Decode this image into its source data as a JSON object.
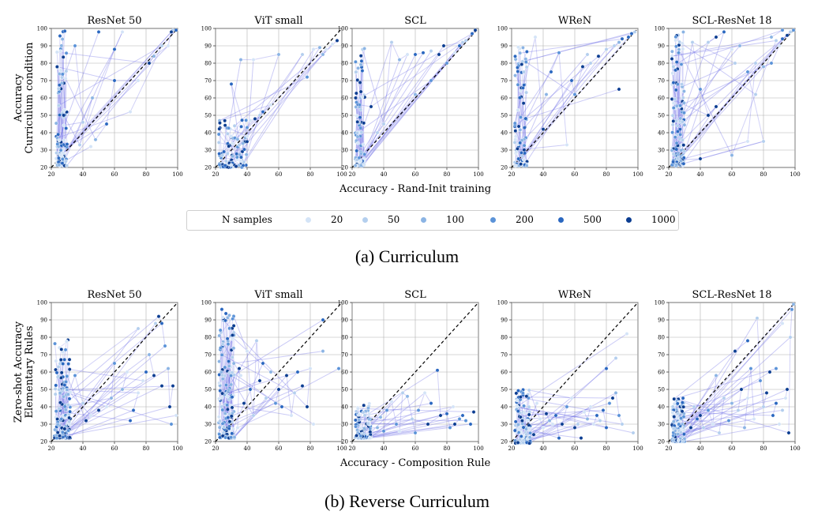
{
  "figure": {
    "caption_a": "(a) Curriculum",
    "caption_b": "(b) Reverse Curriculum",
    "legend": {
      "title": "N samples",
      "entries": [
        {
          "label": "20",
          "color": "#d4e4f7"
        },
        {
          "label": "50",
          "color": "#b4cfee"
        },
        {
          "label": "100",
          "color": "#8bb4e4"
        },
        {
          "label": "200",
          "color": "#5b93d8"
        },
        {
          "label": "500",
          "color": "#2a67c0"
        },
        {
          "label": "1000",
          "color": "#0b3d91"
        }
      ]
    },
    "line_color": "#6a6ae6",
    "diagonal_color": "#000000"
  },
  "chart_data": [
    {
      "type": "scatter",
      "panel": "a1",
      "row": "a",
      "title": "ResNet 50",
      "ylabel": "Accuracy\nCurriculum condition",
      "xlabel": "",
      "xlim": [
        20,
        100
      ],
      "ylim": [
        20,
        100
      ],
      "grid": true,
      "xticks": [
        20,
        40,
        60,
        80,
        100
      ],
      "yticks": [
        20,
        30,
        40,
        50,
        60,
        70,
        80,
        90,
        100
      ],
      "cluster": {
        "x": [
          23,
          30
        ],
        "y": [
          21,
          99
        ],
        "count": 110
      },
      "series_points": [
        [
          97,
          99
        ],
        [
          96,
          98
        ],
        [
          94,
          90
        ],
        [
          85,
          84
        ],
        [
          82,
          80
        ],
        [
          75,
          70
        ],
        [
          60,
          70
        ],
        [
          55,
          45
        ],
        [
          48,
          36
        ],
        [
          45,
          32
        ],
        [
          70,
          52
        ],
        [
          90,
          90
        ],
        [
          99,
          99
        ],
        [
          50,
          98
        ],
        [
          35,
          90
        ],
        [
          40,
          46
        ],
        [
          46,
          60
        ],
        [
          38,
          33
        ],
        [
          60,
          88
        ],
        [
          65,
          98
        ]
      ]
    },
    {
      "type": "scatter",
      "panel": "a2",
      "row": "a",
      "title": "ViT small",
      "ylabel": "",
      "xlabel": "",
      "xlim": [
        20,
        100
      ],
      "ylim": [
        20,
        100
      ],
      "grid": true,
      "xticks": [
        20,
        40,
        60,
        80,
        100
      ],
      "yticks": [
        20,
        30,
        40,
        50,
        60,
        70,
        80,
        90,
        100
      ],
      "cluster": {
        "x": [
          22,
          40
        ],
        "y": [
          20,
          50
        ],
        "count": 90
      },
      "series_points": [
        [
          97,
          93
        ],
        [
          94,
          91
        ],
        [
          90,
          88
        ],
        [
          88,
          85
        ],
        [
          86,
          89
        ],
        [
          82,
          88
        ],
        [
          78,
          72
        ],
        [
          75,
          85
        ],
        [
          55,
          56
        ],
        [
          50,
          52
        ],
        [
          48,
          50
        ],
        [
          45,
          48
        ],
        [
          42,
          47
        ],
        [
          40,
          43
        ],
        [
          36,
          82
        ],
        [
          44,
          82
        ],
        [
          60,
          85
        ],
        [
          30,
          68
        ],
        [
          40,
          38
        ],
        [
          35,
          33
        ]
      ]
    },
    {
      "type": "scatter",
      "panel": "a3",
      "row": "a",
      "title": "SCL",
      "ylabel": "",
      "xlabel": "Accuracy - Rand-Init training",
      "xlim": [
        20,
        100
      ],
      "ylim": [
        20,
        100
      ],
      "grid": true,
      "xticks": [
        20,
        40,
        60,
        80,
        100
      ],
      "yticks": [
        20,
        30,
        40,
        50,
        60,
        70,
        80,
        90,
        100
      ],
      "cluster": {
        "x": [
          22,
          28
        ],
        "y": [
          21,
          96
        ],
        "count": 100
      },
      "series_points": [
        [
          98,
          99
        ],
        [
          96,
          97
        ],
        [
          92,
          93
        ],
        [
          88,
          90
        ],
        [
          85,
          86
        ],
        [
          80,
          80
        ],
        [
          75,
          85
        ],
        [
          70,
          87
        ],
        [
          65,
          86
        ],
        [
          60,
          85
        ],
        [
          55,
          85
        ],
        [
          50,
          82
        ],
        [
          45,
          92
        ],
        [
          40,
          45
        ],
        [
          36,
          40
        ],
        [
          60,
          62
        ],
        [
          70,
          70
        ],
        [
          78,
          90
        ],
        [
          90,
          92
        ],
        [
          32,
          55
        ]
      ]
    },
    {
      "type": "scatter",
      "panel": "a4",
      "row": "a",
      "title": "WReN",
      "ylabel": "",
      "xlabel": "",
      "xlim": [
        20,
        100
      ],
      "ylim": [
        20,
        100
      ],
      "grid": true,
      "xticks": [
        20,
        40,
        60,
        80,
        100
      ],
      "yticks": [
        20,
        30,
        40,
        50,
        60,
        70,
        80,
        90,
        100
      ],
      "cluster": {
        "x": [
          22,
          30
        ],
        "y": [
          21,
          96
        ],
        "count": 95
      },
      "series_points": [
        [
          98,
          98
        ],
        [
          96,
          97
        ],
        [
          94,
          95
        ],
        [
          90,
          94
        ],
        [
          88,
          92
        ],
        [
          85,
          90
        ],
        [
          80,
          88
        ],
        [
          75,
          84
        ],
        [
          70,
          80
        ],
        [
          65,
          78
        ],
        [
          60,
          62
        ],
        [
          58,
          70
        ],
        [
          55,
          33
        ],
        [
          50,
          86
        ],
        [
          45,
          75
        ],
        [
          42,
          62
        ],
        [
          40,
          42
        ],
        [
          35,
          95
        ],
        [
          68,
          85
        ],
        [
          88,
          65
        ]
      ]
    },
    {
      "type": "scatter",
      "panel": "a5",
      "row": "a",
      "title": "SCL-ResNet 18",
      "ylabel": "",
      "xlabel": "",
      "xlim": [
        20,
        100
      ],
      "ylim": [
        20,
        100
      ],
      "grid": true,
      "xticks": [
        20,
        40,
        60,
        80,
        100
      ],
      "yticks": [
        20,
        30,
        40,
        50,
        60,
        70,
        80,
        90,
        100
      ],
      "cluster": {
        "x": [
          22,
          30
        ],
        "y": [
          21,
          99
        ],
        "count": 140
      },
      "series_points": [
        [
          99,
          99
        ],
        [
          97,
          98
        ],
        [
          95,
          96
        ],
        [
          92,
          94
        ],
        [
          90,
          90
        ],
        [
          85,
          80
        ],
        [
          80,
          78
        ],
        [
          75,
          80
        ],
        [
          70,
          35
        ],
        [
          65,
          90
        ],
        [
          60,
          88
        ],
        [
          55,
          98
        ],
        [
          50,
          95
        ],
        [
          45,
          92
        ],
        [
          40,
          25
        ],
        [
          80,
          35
        ],
        [
          70,
          75
        ],
        [
          88,
          93
        ],
        [
          60,
          27
        ],
        [
          50,
          55
        ],
        [
          45,
          50
        ],
        [
          40,
          65
        ],
        [
          35,
          92
        ],
        [
          62,
          80
        ],
        [
          75,
          62
        ],
        [
          85,
          95
        ],
        [
          92,
          99
        ]
      ]
    },
    {
      "type": "scatter",
      "panel": "b1",
      "row": "b",
      "title": "ResNet 50",
      "ylabel": "Zero-shot Accuracy\nElementary Rules",
      "xlabel": "",
      "xlim": [
        20,
        100
      ],
      "ylim": [
        20,
        100
      ],
      "grid": true,
      "xticks": [
        20,
        40,
        60,
        80,
        100
      ],
      "yticks": [
        20,
        30,
        40,
        50,
        60,
        70,
        80,
        90,
        100
      ],
      "cluster": {
        "x": [
          22,
          32
        ],
        "y": [
          22,
          80
        ],
        "count": 160
      },
      "series_points": [
        [
          99,
          35
        ],
        [
          97,
          52
        ],
        [
          95,
          40
        ],
        [
          94,
          62
        ],
        [
          92,
          75
        ],
        [
          90,
          88
        ],
        [
          88,
          92
        ],
        [
          86,
          88
        ],
        [
          85,
          58
        ],
        [
          82,
          70
        ],
        [
          80,
          60
        ],
        [
          78,
          55
        ],
        [
          75,
          48
        ],
        [
          72,
          38
        ],
        [
          70,
          32
        ],
        [
          68,
          60
        ],
        [
          65,
          50
        ],
        [
          60,
          65
        ],
        [
          58,
          45
        ],
        [
          55,
          40
        ],
        [
          50,
          38
        ],
        [
          45,
          35
        ],
        [
          42,
          32
        ],
        [
          40,
          42
        ],
        [
          35,
          58
        ],
        [
          75,
          85
        ],
        [
          90,
          52
        ],
        [
          96,
          30
        ]
      ]
    },
    {
      "type": "scatter",
      "panel": "b2",
      "row": "b",
      "title": "ViT small",
      "ylabel": "",
      "xlabel": "",
      "xlim": [
        20,
        100
      ],
      "ylim": [
        20,
        100
      ],
      "grid": true,
      "xticks": [
        20,
        40,
        60,
        80,
        100
      ],
      "yticks": [
        20,
        30,
        40,
        50,
        60,
        70,
        80,
        90,
        100
      ],
      "cluster": {
        "x": [
          22,
          32
        ],
        "y": [
          22,
          98
        ],
        "count": 160
      },
      "series_points": [
        [
          98,
          62
        ],
        [
          88,
          90
        ],
        [
          82,
          30
        ],
        [
          80,
          62
        ],
        [
          78,
          40
        ],
        [
          75,
          52
        ],
        [
          72,
          60
        ],
        [
          70,
          48
        ],
        [
          68,
          35
        ],
        [
          65,
          58
        ],
        [
          60,
          50
        ],
        [
          58,
          42
        ],
        [
          55,
          60
        ],
        [
          52,
          45
        ],
        [
          50,
          65
        ],
        [
          48,
          55
        ],
        [
          46,
          78
        ],
        [
          44,
          35
        ],
        [
          42,
          50
        ],
        [
          40,
          72
        ],
        [
          38,
          42
        ],
        [
          36,
          58
        ],
        [
          35,
          62
        ],
        [
          34,
          28
        ],
        [
          62,
          40
        ],
        [
          88,
          72
        ]
      ]
    },
    {
      "type": "scatter",
      "panel": "b3",
      "row": "b",
      "title": "SCL",
      "ylabel": "",
      "xlabel": "Accuracy - Composition Rule",
      "xlim": [
        20,
        100
      ],
      "ylim": [
        20,
        100
      ],
      "grid": true,
      "xticks": [
        20,
        40,
        60,
        80,
        100
      ],
      "yticks": [
        20,
        30,
        40,
        50,
        60,
        70,
        80,
        90,
        100
      ],
      "cluster": {
        "x": [
          22,
          32
        ],
        "y": [
          22,
          42
        ],
        "count": 120
      },
      "series_points": [
        [
          97,
          37
        ],
        [
          95,
          30
        ],
        [
          90,
          35
        ],
        [
          88,
          33
        ],
        [
          85,
          30
        ],
        [
          82,
          28
        ],
        [
          80,
          36
        ],
        [
          76,
          35
        ],
        [
          74,
          61
        ],
        [
          70,
          42
        ],
        [
          66,
          48
        ],
        [
          62,
          38
        ],
        [
          60,
          25
        ],
        [
          55,
          46
        ],
        [
          52,
          48
        ],
        [
          50,
          26
        ],
        [
          48,
          30
        ],
        [
          45,
          43
        ],
        [
          42,
          38
        ],
        [
          40,
          26
        ],
        [
          38,
          34
        ],
        [
          36,
          28
        ],
        [
          58,
          33
        ],
        [
          68,
          30
        ],
        [
          84,
          40
        ],
        [
          92,
          32
        ]
      ]
    },
    {
      "type": "scatter",
      "panel": "b4",
      "row": "b",
      "title": "WReN",
      "ylabel": "",
      "xlabel": "",
      "xlim": [
        20,
        100
      ],
      "ylim": [
        20,
        100
      ],
      "grid": true,
      "xticks": [
        20,
        40,
        60,
        80,
        100
      ],
      "yticks": [
        20,
        30,
        40,
        50,
        60,
        70,
        80,
        90,
        100
      ],
      "cluster": {
        "x": [
          22,
          32
        ],
        "y": [
          19,
          50
        ],
        "count": 120
      },
      "series_points": [
        [
          97,
          25
        ],
        [
          93,
          82
        ],
        [
          90,
          30
        ],
        [
          88,
          35
        ],
        [
          86,
          48
        ],
        [
          84,
          45
        ],
        [
          82,
          42
        ],
        [
          80,
          28
        ],
        [
          78,
          38
        ],
        [
          76,
          32
        ],
        [
          74,
          35
        ],
        [
          72,
          30
        ],
        [
          70,
          40
        ],
        [
          68,
          33
        ],
        [
          66,
          37
        ],
        [
          64,
          22
        ],
        [
          62,
          30
        ],
        [
          60,
          28
        ],
        [
          58,
          45
        ],
        [
          55,
          40
        ],
        [
          52,
          30
        ],
        [
          50,
          22
        ],
        [
          48,
          35
        ],
        [
          46,
          30
        ],
        [
          44,
          32
        ],
        [
          42,
          36
        ],
        [
          40,
          28
        ],
        [
          38,
          33
        ],
        [
          36,
          42
        ],
        [
          34,
          24
        ],
        [
          86,
          68
        ],
        [
          80,
          62
        ]
      ]
    },
    {
      "type": "scatter",
      "panel": "b5",
      "row": "b",
      "title": "SCL-ResNet 18",
      "ylabel": "",
      "xlabel": "",
      "xlim": [
        20,
        100
      ],
      "ylim": [
        20,
        100
      ],
      "grid": true,
      "xticks": [
        20,
        40,
        60,
        80,
        100
      ],
      "yticks": [
        20,
        30,
        40,
        50,
        60,
        70,
        80,
        90,
        100
      ],
      "cluster": {
        "x": [
          22,
          30
        ],
        "y": [
          20,
          45
        ],
        "count": 140
      },
      "series_points": [
        [
          99,
          99
        ],
        [
          98,
          96
        ],
        [
          97,
          80
        ],
        [
          96,
          25
        ],
        [
          95,
          50
        ],
        [
          94,
          45
        ],
        [
          92,
          38
        ],
        [
          90,
          30
        ],
        [
          88,
          42
        ],
        [
          86,
          35
        ],
        [
          84,
          60
        ],
        [
          82,
          48
        ],
        [
          80,
          40
        ],
        [
          78,
          55
        ],
        [
          76,
          91
        ],
        [
          74,
          33
        ],
        [
          72,
          62
        ],
        [
          70,
          45
        ],
        [
          68,
          28
        ],
        [
          66,
          50
        ],
        [
          64,
          38
        ],
        [
          62,
          72
        ],
        [
          60,
          42
        ],
        [
          58,
          32
        ],
        [
          55,
          45
        ],
        [
          52,
          25
        ],
        [
          50,
          58
        ],
        [
          48,
          30
        ],
        [
          45,
          38
        ],
        [
          42,
          28
        ],
        [
          40,
          35
        ],
        [
          38,
          33
        ],
        [
          36,
          40
        ],
        [
          34,
          28
        ],
        [
          70,
          78
        ],
        [
          88,
          62
        ],
        [
          92,
          88
        ]
      ]
    }
  ]
}
